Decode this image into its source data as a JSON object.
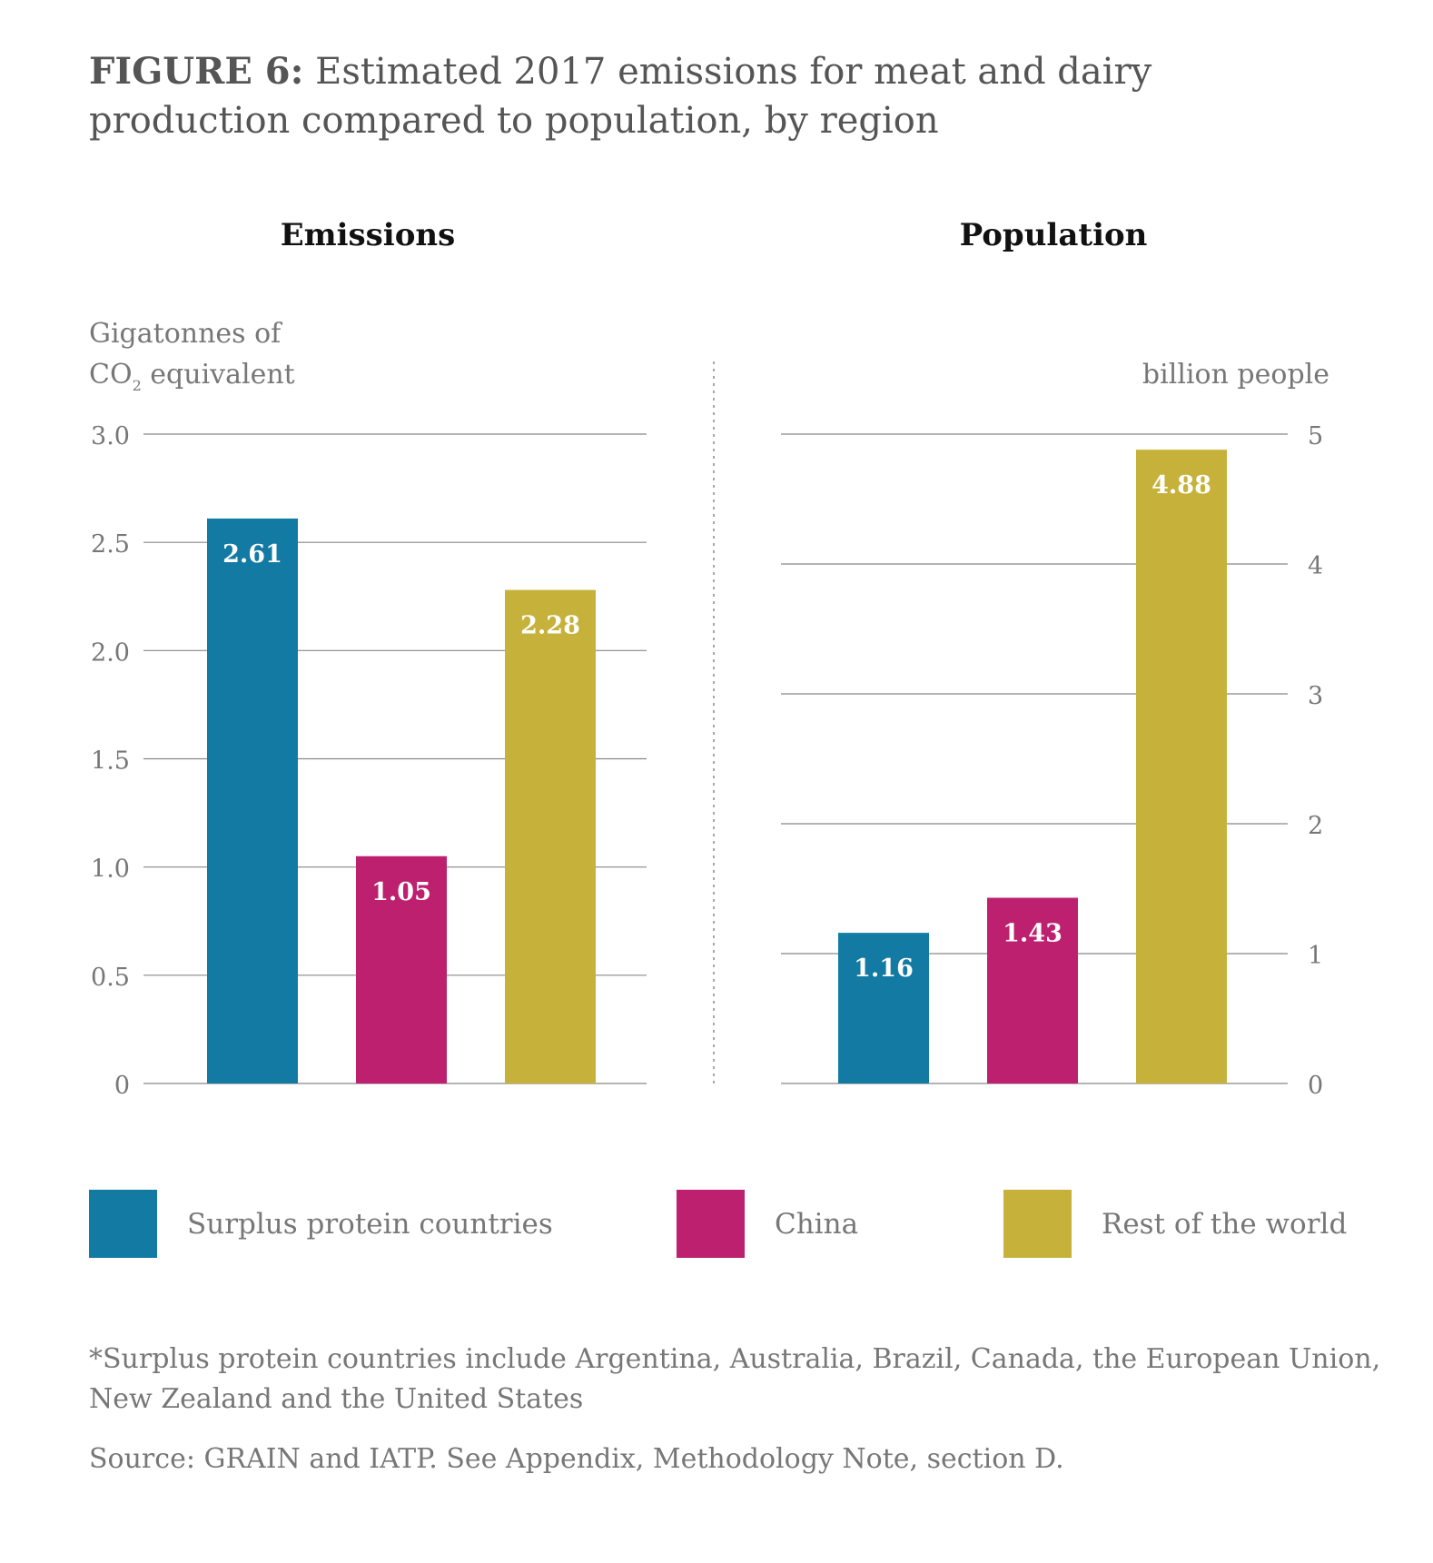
{
  "title": {
    "lead": "FIGURE 6:",
    "text": " Estimated 2017 emissions for meat and dairy production compared to population, by region"
  },
  "colors": {
    "surplus": "#127aa3",
    "china": "#bd206e",
    "rest": "#c6b23a",
    "grid": "#888888",
    "axis_text": "#777777",
    "label_text": "#ffffff"
  },
  "legend": [
    {
      "label": "Surplus protein countries",
      "color": "#127aa3"
    },
    {
      "label": "China",
      "color": "#bd206e"
    },
    {
      "label": "Rest of the world",
      "color": "#c6b23a"
    }
  ],
  "chart_data": [
    {
      "type": "bar",
      "title": "Emissions",
      "ylabel_line1": "Gigatonnes of",
      "ylabel_line2": "CO",
      "ylabel_sub": "2",
      "ylabel_line2_rest": " equivalent",
      "categories": [
        "Surplus protein countries",
        "China",
        "Rest of the world"
      ],
      "values": [
        2.61,
        1.05,
        2.28
      ],
      "value_labels": [
        "2.61",
        "1.05",
        "2.28"
      ],
      "ylim": [
        0,
        3.0
      ],
      "yticks": [
        0,
        0.5,
        1.0,
        1.5,
        2.0,
        2.5,
        3.0
      ],
      "ytick_labels": [
        "0",
        "0.5",
        "1.0",
        "1.5",
        "2.0",
        "2.5",
        "3.0"
      ],
      "grid": true,
      "axis_side": "left"
    },
    {
      "type": "bar",
      "title": "Population",
      "ylabel": "billion people",
      "categories": [
        "Surplus protein countries",
        "China",
        "Rest of the world"
      ],
      "values": [
        1.16,
        1.43,
        4.88
      ],
      "value_labels": [
        "1.16",
        "1.43",
        "4.88"
      ],
      "ylim": [
        0,
        5
      ],
      "yticks": [
        0,
        1,
        2,
        3,
        4,
        5
      ],
      "ytick_labels": [
        "0",
        "1",
        "2",
        "3",
        "4",
        "5"
      ],
      "grid": true,
      "axis_side": "right"
    }
  ],
  "notes": {
    "footnote": "*Surplus protein countries include Argentina, Australia, Brazil, Canada, the European Union, New Zealand and the United States",
    "source": "Source: GRAIN and IATP. See Appendix, Methodology Note, section D."
  }
}
